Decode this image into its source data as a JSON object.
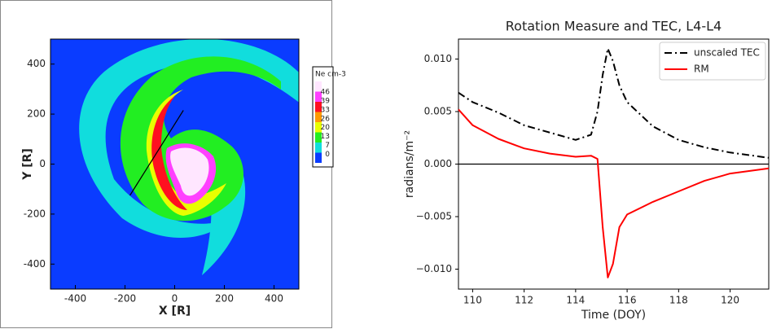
{
  "chart_data": [
    {
      "type": "contour",
      "xlabel": "X [R]",
      "ylabel": "Y [R]",
      "xlim": [
        -500,
        500
      ],
      "ylim": [
        -500,
        500
      ],
      "xticks": [
        -400,
        -200,
        0,
        200,
        400
      ],
      "yticks": [
        -400,
        -200,
        0,
        200,
        400
      ],
      "background": "#0a3cff",
      "line_segment": {
        "x": [
          -180,
          35
        ],
        "y": [
          -125,
          215
        ],
        "color": "#000000"
      },
      "colorbar": {
        "title": "Ne cm-3",
        "levels": [
          46,
          39,
          33,
          26,
          20,
          13,
          7,
          0
        ],
        "colors": [
          "#ffe6ff",
          "#ff40ff",
          "#ff1020",
          "#ff9a00",
          "#e8ff00",
          "#22ee22",
          "#11dddd",
          "#0a3cff"
        ]
      }
    },
    {
      "type": "line",
      "title": "Rotation Measure and TEC, L4-L4",
      "xlabel": "Time (DOY)",
      "ylabel": "radians/m⁻²",
      "xlim": [
        109.45,
        121.5
      ],
      "ylim": [
        -0.0119,
        0.0119
      ],
      "xticks": [
        110,
        112,
        114,
        116,
        118,
        120
      ],
      "yticks": [
        {
          "value": -0.01,
          "label": "−0.010"
        },
        {
          "value": -0.005,
          "label": "−0.005"
        },
        {
          "value": 0,
          "label": "0.000"
        },
        {
          "value": 0.005,
          "label": "0.005"
        },
        {
          "value": 0.01,
          "label": "0.010"
        }
      ],
      "hline": 0,
      "legend": "upper right",
      "x": [
        109.45,
        110,
        111,
        112,
        113,
        114,
        114.6,
        114.85,
        115.05,
        115.25,
        115.45,
        115.7,
        116,
        117,
        118,
        119,
        120,
        121.5
      ],
      "series": [
        {
          "name": "unscaled TEC",
          "color": "#000000",
          "dash": "dashdot",
          "values": [
            0.0068,
            0.0059,
            0.0049,
            0.0037,
            0.003,
            0.0023,
            0.0028,
            0.005,
            0.0085,
            0.011,
            0.0098,
            0.0075,
            0.0059,
            0.0036,
            0.0023,
            0.0016,
            0.0011,
            0.0006
          ]
        },
        {
          "name": "RM",
          "color": "#ff0000",
          "dash": "solid",
          "values": [
            0.0052,
            0.0037,
            0.0024,
            0.0015,
            0.001,
            0.0007,
            0.0008,
            0.0005,
            -0.006,
            -0.0108,
            -0.0095,
            -0.006,
            -0.0048,
            -0.0036,
            -0.0026,
            -0.0016,
            -0.0009,
            -0.0004
          ]
        }
      ]
    }
  ]
}
